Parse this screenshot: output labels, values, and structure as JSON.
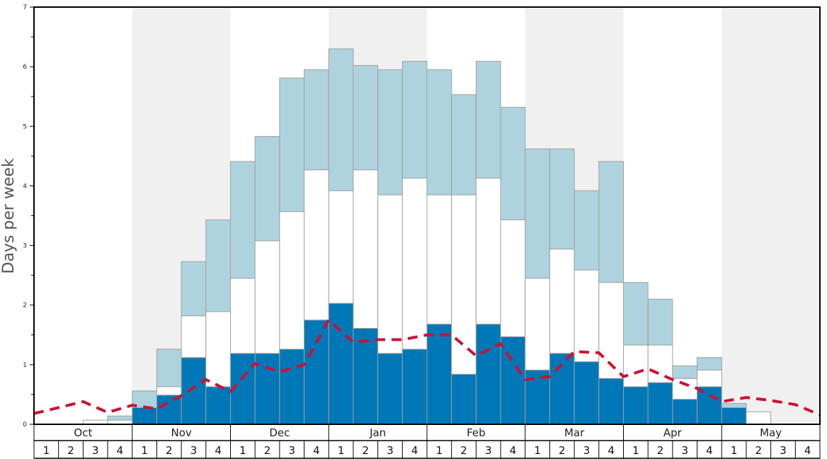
{
  "chart_data": {
    "type": "bar",
    "ylabel": "Days per week",
    "ylim": [
      0,
      7
    ],
    "yticks": [
      "0",
      "1",
      "2",
      "3",
      "4",
      "5",
      "6",
      "7"
    ],
    "months": [
      "Oct",
      "Nov",
      "Dec",
      "Jan",
      "Feb",
      "Mar",
      "Apr",
      "May"
    ],
    "week_labels": [
      "1",
      "2",
      "3",
      "4"
    ],
    "shaded_months": [
      "Nov",
      "Jan",
      "Mar",
      "May"
    ],
    "colors": {
      "dark_bar": "#0077b6",
      "white_bar": "#ffffff",
      "light_bar": "#aed3df",
      "bar_border": "#a0a0a0",
      "dashed_line": "#cc1133",
      "shade": "#f0f0f0",
      "axis": "#000000"
    },
    "series": [
      {
        "values": [
          0,
          0,
          0,
          0,
          0.28,
          0.49,
          1.12,
          0.63,
          1.19,
          1.19,
          1.26,
          1.75,
          2.03,
          1.61,
          1.19,
          1.26,
          1.68,
          0.84,
          1.68,
          1.47,
          0.91,
          1.19,
          1.05,
          0.77,
          0.63,
          0.7,
          0.42,
          0.63,
          0.28,
          0,
          0,
          0
        ]
      },
      {
        "values": [
          0,
          0,
          0.07,
          0.07,
          0,
          0.14,
          0.7,
          1.26,
          1.26,
          1.89,
          2.31,
          2.52,
          1.89,
          2.66,
          2.66,
          2.87,
          2.17,
          3.01,
          2.45,
          1.96,
          1.54,
          1.75,
          1.54,
          1.61,
          0.7,
          0.63,
          0.35,
          0.28,
          0,
          0.21,
          0,
          0
        ]
      },
      {
        "values": [
          0,
          0,
          0,
          0.07,
          0.28,
          0.63,
          0.91,
          1.54,
          1.96,
          1.75,
          2.24,
          1.68,
          2.38,
          1.75,
          2.1,
          1.96,
          2.1,
          1.68,
          1.96,
          1.89,
          2.17,
          1.68,
          1.33,
          2.03,
          1.05,
          0.77,
          0.21,
          0.21,
          0.07,
          0,
          0,
          0
        ]
      }
    ],
    "line": {
      "style": "dashed",
      "values": [
        0.18,
        0.28,
        0.38,
        0.2,
        0.32,
        0.26,
        0.48,
        0.75,
        0.55,
        1.02,
        0.88,
        1.0,
        1.75,
        1.38,
        1.42,
        1.42,
        1.5,
        1.5,
        1.15,
        1.35,
        0.75,
        0.8,
        1.22,
        1.2,
        0.8,
        0.93,
        0.75,
        0.6,
        0.38,
        0.45,
        0.4,
        0.33,
        0.16
      ]
    }
  }
}
